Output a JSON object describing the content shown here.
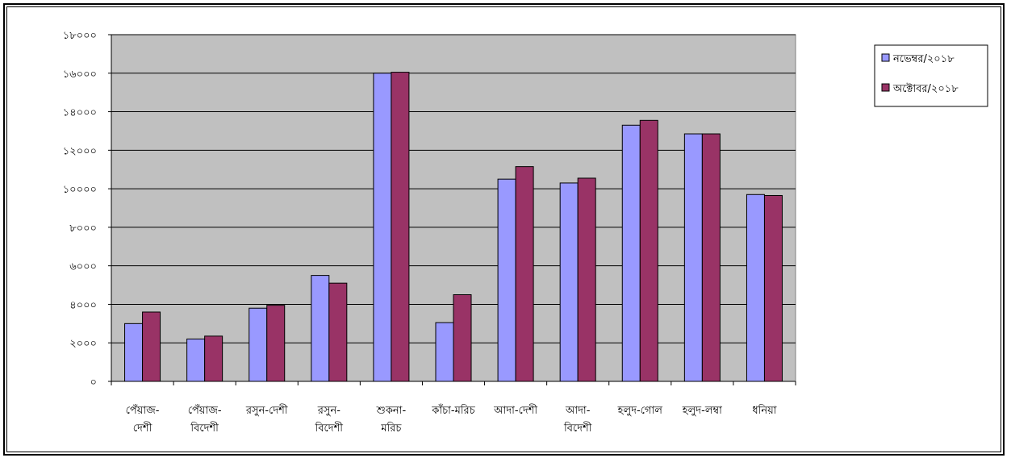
{
  "chart_data": {
    "type": "bar",
    "title": "",
    "xlabel": "",
    "ylabel": "",
    "ylim": [
      0,
      18000
    ],
    "y_ticks": [
      0,
      2000,
      4000,
      6000,
      8000,
      10000,
      12000,
      14000,
      16000,
      18000
    ],
    "y_tick_labels": [
      "০",
      "২০০০",
      "৪০০০",
      "৬০০০",
      "৮০০০",
      "১০০০০",
      "১২০০০",
      "১৪০০০",
      "১৬০০০",
      "১৮০০০"
    ],
    "grid": true,
    "plot_background": "#c0c0c0",
    "legend_position": "right",
    "categories": [
      [
        "পেঁয়াজ-",
        "দেশী"
      ],
      [
        "পেঁয়াজ-",
        "বিদেশী"
      ],
      [
        "রসুন-দেশী"
      ],
      [
        "রসুন-",
        "বিদেশী"
      ],
      [
        "শুকনা-",
        "মরিচ"
      ],
      [
        "কাঁচা-মরিচ"
      ],
      [
        "আদা-দেশী"
      ],
      [
        "আদা-",
        "বিদেশী"
      ],
      [
        "হলুদ-গোল"
      ],
      [
        "হলুদ-লম্বা"
      ],
      [
        "ধনিয়া"
      ]
    ],
    "series": [
      {
        "name": "নভেম্বর/২০১৮",
        "color": "#9999ff",
        "values": [
          3000,
          2200,
          3800,
          5500,
          16000,
          3050,
          10500,
          10300,
          13300,
          12850,
          9700
        ]
      },
      {
        "name": "অক্টোবর/২০১৮",
        "color": "#993366",
        "values": [
          3600,
          2350,
          3950,
          5100,
          16050,
          4500,
          11150,
          10550,
          13550,
          12850,
          9650
        ]
      }
    ]
  }
}
